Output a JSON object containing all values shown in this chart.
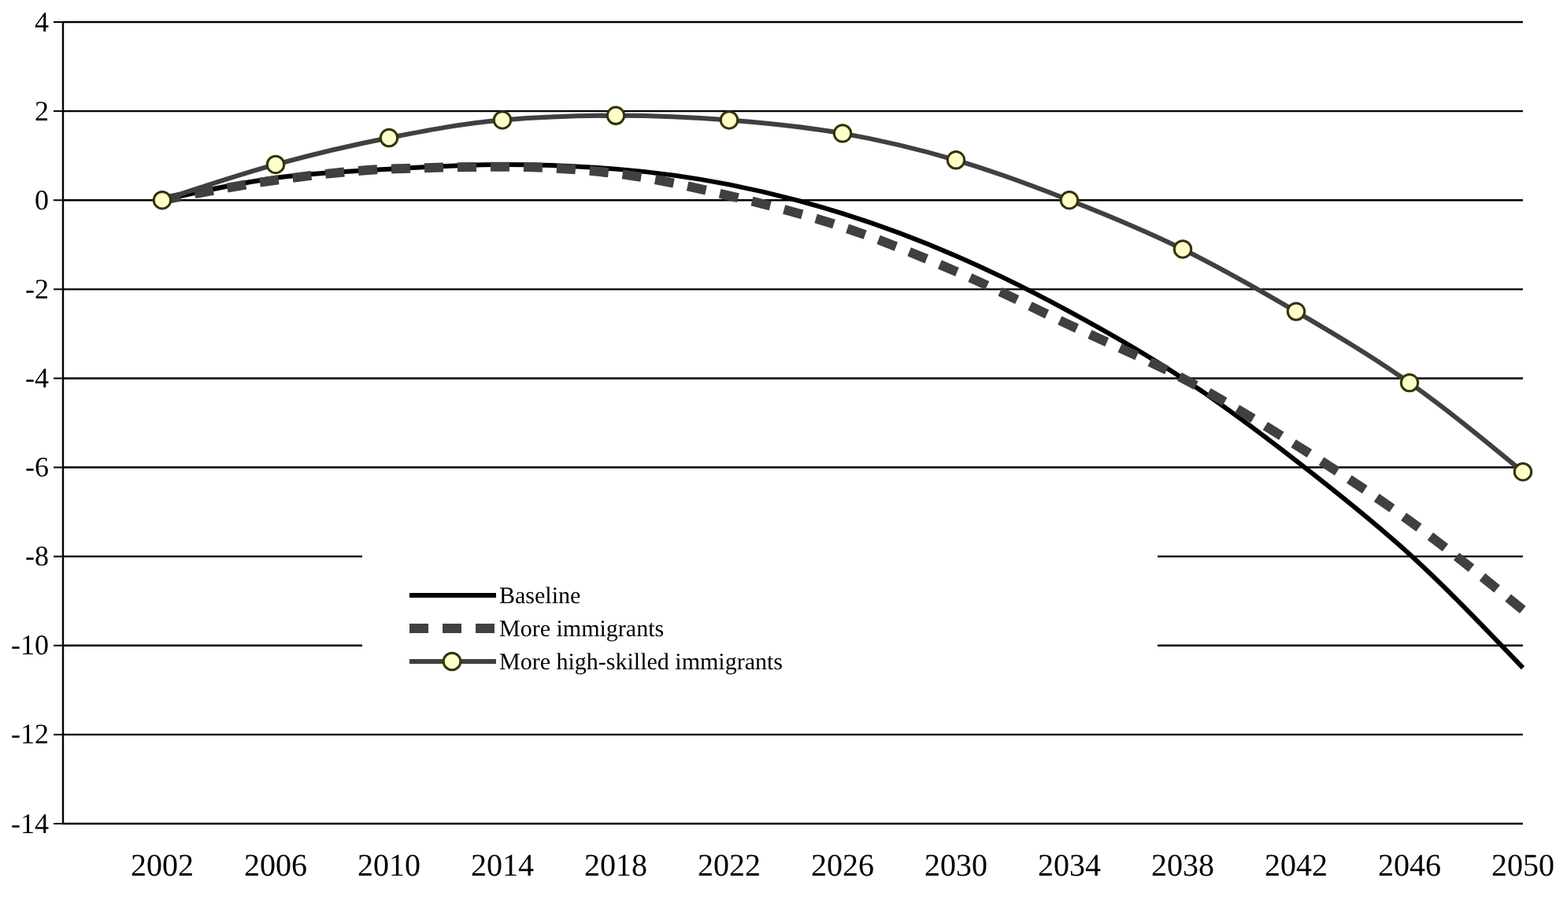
{
  "chart_data": {
    "type": "line",
    "x": [
      2002,
      2006,
      2010,
      2014,
      2018,
      2022,
      2026,
      2030,
      2034,
      2038,
      2042,
      2046,
      2050
    ],
    "xlim": [
      2002,
      2050
    ],
    "xticks": [
      2002,
      2006,
      2010,
      2014,
      2018,
      2022,
      2026,
      2030,
      2034,
      2038,
      2042,
      2046,
      2050
    ],
    "ylim": [
      -14,
      4
    ],
    "yticks": [
      -14,
      -12,
      -10,
      -8,
      -6,
      -4,
      -2,
      0,
      2,
      4
    ],
    "grid": "y",
    "legend": "bottom",
    "series": [
      {
        "name": "Baseline",
        "color": "#000000",
        "line_style": "solid",
        "marker": "none",
        "values": [
          0,
          0.5,
          0.7,
          0.8,
          0.7,
          0.35,
          -0.3,
          -1.25,
          -2.5,
          -4.0,
          -5.85,
          -7.95,
          -10.5
        ]
      },
      {
        "name": "More immigrants",
        "color": "#404040",
        "line_style": "dashed",
        "marker": "none",
        "values": [
          0,
          0.45,
          0.7,
          0.75,
          0.6,
          0.1,
          -0.6,
          -1.6,
          -2.8,
          -4.0,
          -5.5,
          -7.2,
          -9.2
        ]
      },
      {
        "name": "More high-skilled immigrants",
        "color": "#404040",
        "line_style": "solid",
        "marker": "circle",
        "values": [
          0,
          0.8,
          1.4,
          1.8,
          1.9,
          1.8,
          1.5,
          0.9,
          0,
          -1.1,
          -2.5,
          -4.1,
          -6.1
        ]
      }
    ]
  }
}
